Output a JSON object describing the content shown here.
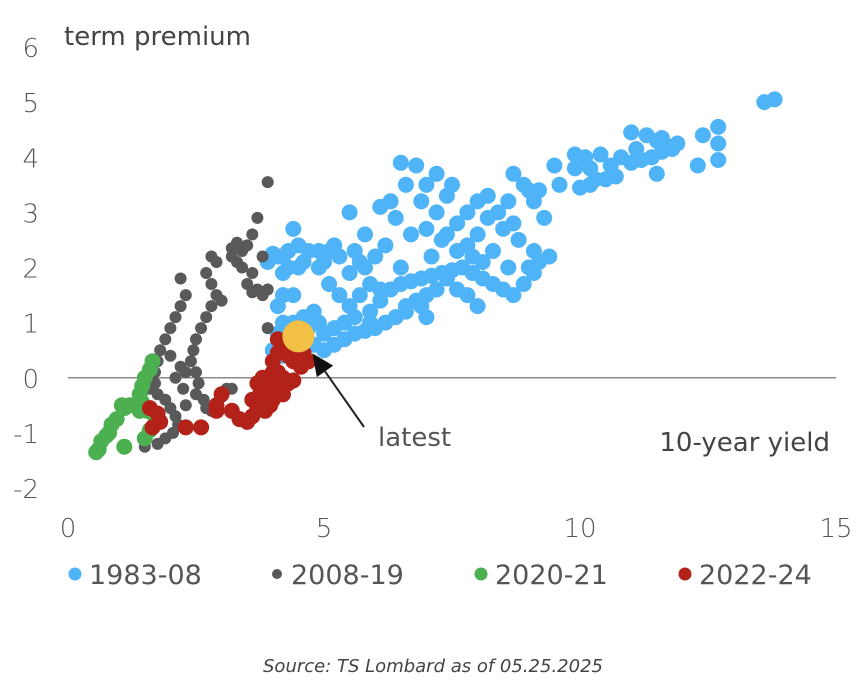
{
  "chart_data": {
    "type": "scatter",
    "title": "",
    "ylabel": "term premium",
    "xlabel": "10-year yield",
    "xlim": [
      0,
      15
    ],
    "ylim": [
      -2,
      6
    ],
    "x_ticks": [
      "0",
      "5",
      "10",
      "15"
    ],
    "y_ticks": [
      "6",
      "5",
      "4",
      "3",
      "2",
      "1",
      "0",
      "-1",
      "-2"
    ],
    "grid": false,
    "zero_line": true,
    "legend_position": "bottom",
    "annotation": {
      "text": "latest",
      "point": [
        4.5,
        0.75
      ],
      "color": "#F2C045"
    },
    "series": [
      {
        "name": "1983-08",
        "color": "#4FB4F7",
        "points": [
          [
            13.6,
            5.0
          ],
          [
            13.8,
            5.05
          ],
          [
            12.4,
            4.4
          ],
          [
            12.7,
            4.55
          ],
          [
            12.7,
            4.25
          ],
          [
            12.3,
            3.85
          ],
          [
            12.7,
            3.95
          ],
          [
            11.0,
            4.45
          ],
          [
            11.3,
            4.4
          ],
          [
            11.5,
            4.3
          ],
          [
            11.7,
            4.2
          ],
          [
            11.9,
            4.25
          ],
          [
            11.6,
            4.1
          ],
          [
            11.4,
            4.0
          ],
          [
            11.2,
            3.95
          ],
          [
            11.8,
            4.15
          ],
          [
            11.0,
            3.9
          ],
          [
            11.5,
            3.7
          ],
          [
            11.1,
            4.15
          ],
          [
            11.6,
            4.35
          ],
          [
            10.3,
            3.6
          ],
          [
            10.5,
            3.6
          ],
          [
            10.7,
            3.65
          ],
          [
            10.2,
            3.8
          ],
          [
            10.6,
            3.85
          ],
          [
            10.1,
            4.0
          ],
          [
            10.4,
            4.05
          ],
          [
            9.9,
            3.8
          ],
          [
            9.5,
            3.85
          ],
          [
            10.8,
            4.0
          ],
          [
            9.6,
            3.5
          ],
          [
            10.0,
            3.45
          ],
          [
            10.2,
            3.5
          ],
          [
            9.9,
            4.05
          ],
          [
            9.2,
            2.1
          ],
          [
            9.1,
            2.3
          ],
          [
            9.4,
            2.2
          ],
          [
            9.0,
            2.0
          ],
          [
            8.8,
            2.5
          ],
          [
            9.3,
            2.9
          ],
          [
            9.1,
            3.2
          ],
          [
            8.9,
            3.5
          ],
          [
            8.7,
            3.7
          ],
          [
            9.0,
            3.4
          ],
          [
            8.6,
            3.2
          ],
          [
            8.4,
            3.0
          ],
          [
            8.2,
            2.9
          ],
          [
            8.5,
            2.7
          ],
          [
            8.3,
            2.3
          ],
          [
            8.1,
            2.1
          ],
          [
            7.9,
            2.2
          ],
          [
            8.0,
            2.6
          ],
          [
            8.6,
            2.0
          ],
          [
            8.7,
            2.8
          ],
          [
            9.2,
            3.4
          ],
          [
            7.8,
            3.0
          ],
          [
            7.6,
            2.8
          ],
          [
            7.4,
            2.6
          ],
          [
            7.6,
            2.3
          ],
          [
            7.8,
            2.4
          ],
          [
            8.0,
            3.2
          ],
          [
            8.2,
            3.3
          ],
          [
            7.5,
            3.5
          ],
          [
            7.4,
            3.3
          ],
          [
            7.2,
            3.0
          ],
          [
            7.0,
            2.7
          ],
          [
            7.3,
            2.5
          ],
          [
            7.1,
            2.2
          ],
          [
            6.9,
            3.2
          ],
          [
            7.2,
            3.7
          ],
          [
            6.5,
            3.9
          ],
          [
            6.8,
            3.85
          ],
          [
            7.0,
            3.5
          ],
          [
            6.6,
            3.5
          ],
          [
            6.3,
            3.2
          ],
          [
            6.1,
            3.1
          ],
          [
            6.4,
            2.9
          ],
          [
            6.7,
            2.6
          ],
          [
            6.2,
            2.4
          ],
          [
            6.0,
            2.2
          ],
          [
            5.8,
            2.0
          ],
          [
            6.5,
            2.0
          ],
          [
            5.9,
            1.2
          ],
          [
            6.1,
            1.4
          ],
          [
            6.3,
            1.6
          ],
          [
            6.5,
            1.7
          ],
          [
            6.7,
            1.75
          ],
          [
            6.9,
            1.8
          ],
          [
            7.1,
            1.85
          ],
          [
            7.3,
            1.9
          ],
          [
            7.5,
            1.95
          ],
          [
            7.7,
            2.0
          ],
          [
            7.9,
            1.9
          ],
          [
            8.1,
            1.8
          ],
          [
            8.3,
            1.7
          ],
          [
            8.5,
            1.6
          ],
          [
            8.7,
            1.5
          ],
          [
            8.9,
            1.7
          ],
          [
            9.1,
            1.9
          ],
          [
            6.0,
            0.9
          ],
          [
            6.2,
            1.0
          ],
          [
            6.4,
            1.1
          ],
          [
            6.6,
            1.3
          ],
          [
            6.8,
            1.4
          ],
          [
            7.0,
            1.5
          ],
          [
            7.2,
            1.6
          ],
          [
            7.4,
            1.8
          ],
          [
            7.6,
            1.6
          ],
          [
            7.8,
            1.5
          ],
          [
            8.0,
            1.3
          ],
          [
            6.1,
            1.6
          ],
          [
            6.6,
            1.2
          ],
          [
            6.9,
            1.3
          ],
          [
            7.0,
            1.1
          ],
          [
            5.2,
            0.6
          ],
          [
            5.4,
            0.7
          ],
          [
            5.6,
            0.8
          ],
          [
            5.8,
            0.85
          ],
          [
            5.9,
            1.0
          ],
          [
            5.6,
            1.1
          ],
          [
            5.4,
            1.0
          ],
          [
            5.2,
            0.9
          ],
          [
            5.5,
            1.3
          ],
          [
            5.7,
            1.5
          ],
          [
            5.9,
            1.7
          ],
          [
            5.3,
            1.5
          ],
          [
            5.1,
            1.7
          ],
          [
            5.5,
            1.9
          ],
          [
            5.7,
            2.1
          ],
          [
            5.0,
            2.1
          ],
          [
            5.2,
            2.4
          ],
          [
            4.9,
            1.0
          ],
          [
            5.0,
            0.8
          ],
          [
            4.8,
            0.6
          ],
          [
            4.6,
            0.5
          ],
          [
            4.7,
            0.9
          ],
          [
            5.0,
            0.5
          ],
          [
            4.8,
            1.2
          ],
          [
            4.6,
            1.1
          ],
          [
            4.4,
            1.0
          ],
          [
            4.2,
            1.0
          ],
          [
            4.1,
            0.8
          ],
          [
            4.0,
            0.5
          ],
          [
            4.3,
            0.6
          ],
          [
            4.2,
            0.4
          ],
          [
            4.1,
            1.3
          ],
          [
            4.2,
            1.5
          ],
          [
            4.4,
            1.5
          ],
          [
            3.9,
            2.1
          ],
          [
            4.1,
            2.2
          ],
          [
            4.3,
            2.3
          ],
          [
            4.5,
            2.4
          ],
          [
            4.7,
            2.3
          ],
          [
            4.9,
            2.3
          ],
          [
            5.1,
            2.3
          ],
          [
            5.3,
            2.2
          ],
          [
            4.3,
            2.0
          ],
          [
            4.5,
            2.0
          ],
          [
            4.4,
            2.7
          ],
          [
            4.2,
            2.2
          ],
          [
            4.6,
            2.1
          ],
          [
            4.0,
            2.25
          ],
          [
            4.2,
            1.9
          ],
          [
            4.9,
            2.0
          ],
          [
            5.6,
            2.3
          ],
          [
            5.8,
            2.6
          ],
          [
            5.5,
            3.0
          ]
        ]
      },
      {
        "name": "2008-19",
        "color": "#595959",
        "points": [
          [
            3.9,
            3.55
          ],
          [
            3.7,
            2.9
          ],
          [
            3.6,
            2.6
          ],
          [
            3.5,
            2.4
          ],
          [
            3.4,
            2.3
          ],
          [
            3.3,
            2.1
          ],
          [
            3.2,
            2.2
          ],
          [
            3.4,
            2.0
          ],
          [
            3.2,
            2.35
          ],
          [
            3.3,
            2.45
          ],
          [
            3.8,
            2.2
          ],
          [
            3.6,
            1.9
          ],
          [
            3.5,
            1.7
          ],
          [
            3.7,
            1.6
          ],
          [
            3.8,
            1.5
          ],
          [
            3.9,
            1.6
          ],
          [
            3.9,
            0.9
          ],
          [
            3.6,
            1.55
          ],
          [
            2.8,
            2.2
          ],
          [
            2.9,
            2.1
          ],
          [
            2.7,
            1.9
          ],
          [
            2.8,
            1.7
          ],
          [
            2.9,
            1.5
          ],
          [
            3.0,
            1.4
          ],
          [
            2.8,
            1.3
          ],
          [
            2.7,
            1.1
          ],
          [
            2.6,
            0.9
          ],
          [
            2.5,
            0.7
          ],
          [
            2.45,
            0.5
          ],
          [
            2.4,
            0.3
          ],
          [
            2.5,
            0.1
          ],
          [
            2.55,
            -0.1
          ],
          [
            2.5,
            -0.3
          ],
          [
            2.65,
            -0.4
          ],
          [
            2.7,
            -0.55
          ],
          [
            2.8,
            -0.6
          ],
          [
            2.9,
            -0.55
          ],
          [
            3.0,
            -0.35
          ],
          [
            3.1,
            -0.2
          ],
          [
            3.2,
            -0.2
          ],
          [
            2.2,
            1.3
          ],
          [
            2.1,
            1.1
          ],
          [
            2.0,
            0.9
          ],
          [
            1.9,
            0.7
          ],
          [
            1.8,
            0.5
          ],
          [
            1.75,
            0.3
          ],
          [
            1.7,
            0.1
          ],
          [
            1.7,
            -0.1
          ],
          [
            1.75,
            -0.3
          ],
          [
            1.9,
            -0.4
          ],
          [
            2.0,
            -0.55
          ],
          [
            2.1,
            -0.7
          ],
          [
            2.15,
            -0.85
          ],
          [
            2.05,
            -1.0
          ],
          [
            1.9,
            -1.1
          ],
          [
            1.75,
            -1.2
          ],
          [
            1.5,
            -1.25
          ],
          [
            2.2,
            0.2
          ],
          [
            2.3,
            0.1
          ],
          [
            2.25,
            -0.2
          ],
          [
            2.1,
            0.0
          ],
          [
            2.0,
            0.4
          ],
          [
            2.3,
            1.5
          ],
          [
            2.2,
            1.8
          ],
          [
            2.3,
            -0.5
          ],
          [
            1.6,
            0.0
          ],
          [
            1.6,
            -0.2
          ]
        ]
      },
      {
        "name": "2020-21",
        "color": "#4CAF50",
        "points": [
          [
            1.65,
            0.3
          ],
          [
            1.6,
            0.15
          ],
          [
            1.5,
            0.0
          ],
          [
            1.45,
            -0.15
          ],
          [
            1.4,
            -0.3
          ],
          [
            1.45,
            -0.45
          ],
          [
            1.4,
            -0.6
          ],
          [
            1.3,
            -0.5
          ],
          [
            1.2,
            -0.5
          ],
          [
            1.1,
            -0.55
          ],
          [
            1.05,
            -0.5
          ],
          [
            0.95,
            -0.75
          ],
          [
            0.85,
            -0.85
          ],
          [
            0.8,
            -1.0
          ],
          [
            0.75,
            -1.05
          ],
          [
            0.65,
            -1.15
          ],
          [
            0.6,
            -1.3
          ],
          [
            0.55,
            -1.35
          ],
          [
            1.1,
            -1.25
          ],
          [
            1.5,
            -1.1
          ],
          [
            1.6,
            -0.95
          ],
          [
            1.55,
            -0.6
          ],
          [
            1.7,
            -0.7
          ]
        ]
      },
      {
        "name": "2022-24",
        "color": "#B22218",
        "points": [
          [
            1.6,
            -0.55
          ],
          [
            1.75,
            -0.65
          ],
          [
            1.8,
            -0.8
          ],
          [
            1.65,
            -0.9
          ],
          [
            2.3,
            -0.9
          ],
          [
            2.6,
            -0.9
          ],
          [
            2.9,
            -0.5
          ],
          [
            3.0,
            -0.3
          ],
          [
            2.9,
            -0.6
          ],
          [
            3.2,
            -0.6
          ],
          [
            3.35,
            -0.75
          ],
          [
            3.5,
            -0.8
          ],
          [
            3.6,
            -0.7
          ],
          [
            3.7,
            -0.55
          ],
          [
            3.8,
            -0.45
          ],
          [
            3.9,
            -0.35
          ],
          [
            4.0,
            -0.2
          ],
          [
            3.75,
            -0.3
          ],
          [
            3.6,
            -0.4
          ],
          [
            3.85,
            -0.6
          ],
          [
            3.95,
            -0.5
          ],
          [
            3.7,
            -0.1
          ],
          [
            3.8,
            0.0
          ],
          [
            3.9,
            -0.05
          ],
          [
            4.0,
            0.1
          ],
          [
            4.1,
            0.1
          ],
          [
            4.2,
            0.0
          ],
          [
            4.3,
            -0.1
          ],
          [
            4.4,
            -0.05
          ],
          [
            4.1,
            -0.2
          ],
          [
            4.0,
            -0.4
          ],
          [
            4.2,
            -0.3
          ],
          [
            4.0,
            0.3
          ],
          [
            4.1,
            0.45
          ],
          [
            4.2,
            0.5
          ],
          [
            4.3,
            0.4
          ],
          [
            4.4,
            0.3
          ],
          [
            4.5,
            0.35
          ],
          [
            4.6,
            0.45
          ],
          [
            4.55,
            0.2
          ],
          [
            4.7,
            0.3
          ],
          [
            4.1,
            0.7
          ],
          [
            4.3,
            0.6
          ]
        ]
      }
    ]
  },
  "source": "Source: TS Lombard as of 05.25.2025"
}
